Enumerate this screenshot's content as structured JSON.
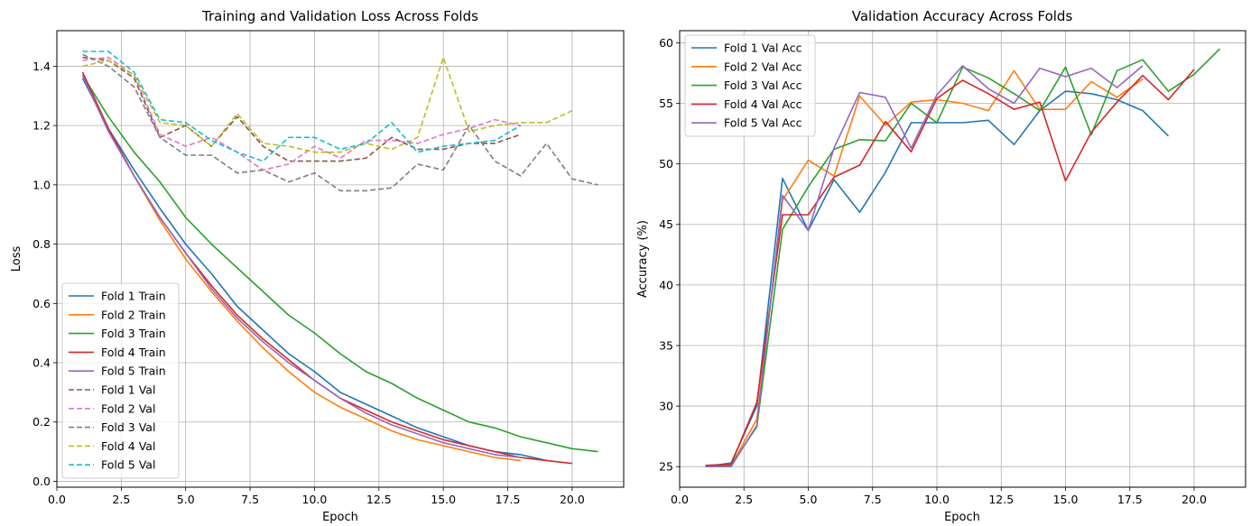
{
  "chart_data": [
    {
      "type": "line",
      "title": "Training and Validation Loss Across Folds",
      "xlabel": "Epoch",
      "ylabel": "Loss",
      "xlim": [
        0,
        22
      ],
      "ylim": [
        -0.02,
        1.52
      ],
      "xticks": [
        0.0,
        2.5,
        5.0,
        7.5,
        10.0,
        12.5,
        15.0,
        17.5,
        20.0
      ],
      "xtick_labels": [
        "0.0",
        "2.5",
        "5.0",
        "7.5",
        "10.0",
        "12.5",
        "15.0",
        "17.5",
        "20.0"
      ],
      "yticks": [
        0.0,
        0.2,
        0.4,
        0.6,
        0.8,
        1.0,
        1.2,
        1.4
      ],
      "ytick_labels": [
        "0.0",
        "0.2",
        "0.4",
        "0.6",
        "0.8",
        "1.0",
        "1.2",
        "1.4"
      ],
      "grid": true,
      "legend_position": "lower-left",
      "series": [
        {
          "name": "Fold 1 Train",
          "color": "#1f77b4",
          "dash": "solid",
          "x": [
            1,
            2,
            3,
            4,
            5,
            6,
            7,
            8,
            9,
            10,
            11,
            12,
            13,
            14,
            15,
            16,
            17,
            18,
            19
          ],
          "y": [
            1.36,
            1.19,
            1.05,
            0.92,
            0.8,
            0.7,
            0.59,
            0.51,
            0.43,
            0.37,
            0.3,
            0.26,
            0.22,
            0.18,
            0.15,
            0.12,
            0.1,
            0.09,
            0.07
          ]
        },
        {
          "name": "Fold 2 Train",
          "color": "#ff7f0e",
          "dash": "solid",
          "x": [
            1,
            2,
            3,
            4,
            5,
            6,
            7,
            8,
            9,
            10,
            11,
            12,
            13,
            14,
            15,
            16,
            17,
            18
          ],
          "y": [
            1.37,
            1.19,
            1.03,
            0.88,
            0.75,
            0.64,
            0.54,
            0.45,
            0.37,
            0.3,
            0.25,
            0.21,
            0.17,
            0.14,
            0.12,
            0.1,
            0.08,
            0.07
          ]
        },
        {
          "name": "Fold 3 Train",
          "color": "#2ca02c",
          "dash": "solid",
          "x": [
            1,
            2,
            3,
            4,
            5,
            6,
            7,
            8,
            9,
            10,
            11,
            12,
            13,
            14,
            15,
            16,
            17,
            18,
            19,
            20,
            21
          ],
          "y": [
            1.37,
            1.23,
            1.11,
            1.01,
            0.89,
            0.8,
            0.72,
            0.64,
            0.56,
            0.5,
            0.43,
            0.37,
            0.33,
            0.28,
            0.24,
            0.2,
            0.18,
            0.15,
            0.13,
            0.11,
            0.1
          ]
        },
        {
          "name": "Fold 4 Train",
          "color": "#d62728",
          "dash": "solid",
          "x": [
            1,
            2,
            3,
            4,
            5,
            6,
            7,
            8,
            9,
            10,
            11,
            12,
            13,
            14,
            15,
            16,
            17,
            18,
            19,
            20
          ],
          "y": [
            1.38,
            1.19,
            1.03,
            0.89,
            0.77,
            0.66,
            0.56,
            0.48,
            0.41,
            0.34,
            0.28,
            0.24,
            0.2,
            0.17,
            0.14,
            0.12,
            0.1,
            0.08,
            0.07,
            0.06
          ]
        },
        {
          "name": "Fold 5 Train",
          "color": "#9467bd",
          "dash": "solid",
          "x": [
            1,
            2,
            3,
            4,
            5,
            6,
            7,
            8,
            9,
            10,
            11,
            12,
            13,
            14,
            15,
            16,
            17,
            18
          ],
          "y": [
            1.37,
            1.18,
            1.03,
            0.89,
            0.77,
            0.65,
            0.55,
            0.47,
            0.4,
            0.34,
            0.28,
            0.23,
            0.19,
            0.16,
            0.13,
            0.11,
            0.09,
            0.08
          ]
        },
        {
          "name": "Fold 1 Val",
          "color": "#8c564b",
          "dash": "dashed",
          "x": [
            1,
            2,
            3,
            4,
            5,
            6,
            7,
            8,
            9,
            10,
            11,
            12,
            13,
            14,
            15,
            16,
            17,
            18
          ],
          "y": [
            1.43,
            1.42,
            1.36,
            1.16,
            1.2,
            1.13,
            1.23,
            1.13,
            1.08,
            1.08,
            1.08,
            1.09,
            1.16,
            1.12,
            1.12,
            1.14,
            1.14,
            1.17
          ]
        },
        {
          "name": "Fold 2 Val",
          "color": "#e377c2",
          "dash": "dashed",
          "x": [
            1,
            2,
            3,
            4,
            5,
            6,
            7,
            8,
            9,
            10,
            11,
            12,
            13,
            14,
            15,
            16,
            17,
            18
          ],
          "y": [
            1.42,
            1.43,
            1.37,
            1.17,
            1.13,
            1.16,
            1.11,
            1.05,
            1.07,
            1.13,
            1.09,
            1.15,
            1.15,
            1.14,
            1.17,
            1.19,
            1.22,
            1.2
          ]
        },
        {
          "name": "Fold 3 Val",
          "color": "#7f7f7f",
          "dash": "dashed",
          "x": [
            1,
            2,
            3,
            4,
            5,
            6,
            7,
            8,
            9,
            10,
            11,
            12,
            13,
            14,
            15,
            16,
            17,
            18,
            19,
            20,
            21
          ],
          "y": [
            1.44,
            1.4,
            1.33,
            1.16,
            1.1,
            1.1,
            1.04,
            1.05,
            1.01,
            1.04,
            0.98,
            0.98,
            0.99,
            1.07,
            1.05,
            1.2,
            1.08,
            1.03,
            1.14,
            1.02,
            1.0
          ]
        },
        {
          "name": "Fold 4 Val",
          "color": "#bcbd22",
          "dash": "dashed",
          "x": [
            1,
            2,
            3,
            4,
            5,
            6,
            7,
            8,
            9,
            10,
            11,
            12,
            13,
            14,
            15,
            16,
            17,
            18,
            19,
            20
          ],
          "y": [
            1.4,
            1.42,
            1.37,
            1.21,
            1.2,
            1.13,
            1.24,
            1.14,
            1.13,
            1.11,
            1.11,
            1.14,
            1.12,
            1.16,
            1.43,
            1.18,
            1.2,
            1.21,
            1.21,
            1.25
          ]
        },
        {
          "name": "Fold 5 Val",
          "color": "#17becf",
          "dash": "dashed",
          "x": [
            1,
            2,
            3,
            4,
            5,
            6,
            7,
            8,
            9,
            10,
            11,
            12,
            13,
            14,
            15,
            16,
            17,
            18
          ],
          "y": [
            1.45,
            1.45,
            1.38,
            1.22,
            1.21,
            1.15,
            1.11,
            1.08,
            1.16,
            1.16,
            1.12,
            1.14,
            1.21,
            1.11,
            1.13,
            1.14,
            1.15,
            1.2
          ]
        }
      ]
    },
    {
      "type": "line",
      "title": "Validation Accuracy Across Folds",
      "xlabel": "Epoch",
      "ylabel": "Accuracy (%)",
      "xlim": [
        0,
        22
      ],
      "ylim": [
        23.3,
        61.0
      ],
      "xticks": [
        0.0,
        2.5,
        5.0,
        7.5,
        10.0,
        12.5,
        15.0,
        17.5,
        20.0
      ],
      "xtick_labels": [
        "0.0",
        "2.5",
        "5.0",
        "7.5",
        "10.0",
        "12.5",
        "15.0",
        "17.5",
        "20.0"
      ],
      "yticks": [
        25,
        30,
        35,
        40,
        45,
        50,
        55,
        60
      ],
      "ytick_labels": [
        "25",
        "30",
        "35",
        "40",
        "45",
        "50",
        "55",
        "60"
      ],
      "grid": true,
      "legend_position": "upper-left",
      "series": [
        {
          "name": "Fold 1 Val Acc",
          "color": "#1f77b4",
          "dash": "solid",
          "x": [
            1,
            2,
            3,
            4,
            5,
            6,
            7,
            8,
            9,
            10,
            11,
            12,
            13,
            14,
            15,
            16,
            17,
            18,
            19
          ],
          "y": [
            25.0,
            25.3,
            30.0,
            48.8,
            44.5,
            48.7,
            46.0,
            49.3,
            53.4,
            53.4,
            53.4,
            53.6,
            51.6,
            54.4,
            56.0,
            55.8,
            55.3,
            54.4,
            52.3
          ]
        },
        {
          "name": "Fold 2 Val Acc",
          "color": "#ff7f0e",
          "dash": "solid",
          "x": [
            1,
            2,
            3,
            4,
            5,
            6,
            7,
            8,
            9,
            10,
            11,
            12,
            13,
            14,
            15,
            16,
            17,
            18
          ],
          "y": [
            25.0,
            25.1,
            28.9,
            47.0,
            50.3,
            49.0,
            55.6,
            53.2,
            55.1,
            55.3,
            55.0,
            54.4,
            57.7,
            54.5,
            54.5,
            56.8,
            55.5,
            57.0
          ]
        },
        {
          "name": "Fold 3 Val Acc",
          "color": "#2ca02c",
          "dash": "solid",
          "x": [
            1,
            2,
            3,
            4,
            5,
            6,
            7,
            8,
            9,
            10,
            11,
            12,
            13,
            14,
            15,
            16,
            17,
            18,
            19,
            20,
            21
          ],
          "y": [
            25.0,
            25.1,
            28.3,
            44.6,
            48.1,
            51.2,
            52.0,
            51.9,
            55.0,
            53.4,
            58.0,
            57.1,
            55.8,
            54.4,
            58.0,
            52.4,
            57.7,
            58.6,
            56.0,
            57.4,
            59.5
          ]
        },
        {
          "name": "Fold 4 Val Acc",
          "color": "#d62728",
          "dash": "solid",
          "x": [
            1,
            2,
            3,
            4,
            5,
            6,
            7,
            8,
            9,
            10,
            11,
            12,
            13,
            14,
            15,
            16,
            17,
            18,
            19,
            20
          ],
          "y": [
            25.1,
            25.2,
            30.3,
            45.8,
            45.8,
            48.9,
            49.9,
            53.5,
            51.0,
            55.4,
            56.9,
            55.8,
            54.5,
            55.1,
            48.6,
            52.6,
            55.1,
            57.3,
            55.3,
            57.8
          ]
        },
        {
          "name": "Fold 5 Val Acc",
          "color": "#9467bd",
          "dash": "solid",
          "x": [
            1,
            2,
            3,
            4,
            5,
            6,
            7,
            8,
            9,
            10,
            11,
            12,
            13,
            14,
            15,
            16,
            17,
            18
          ],
          "y": [
            25.0,
            25.0,
            28.4,
            47.4,
            44.5,
            51.3,
            55.9,
            55.5,
            51.3,
            55.7,
            58.1,
            56.2,
            55.0,
            57.9,
            57.2,
            57.9,
            56.3,
            58.1
          ]
        }
      ]
    }
  ]
}
